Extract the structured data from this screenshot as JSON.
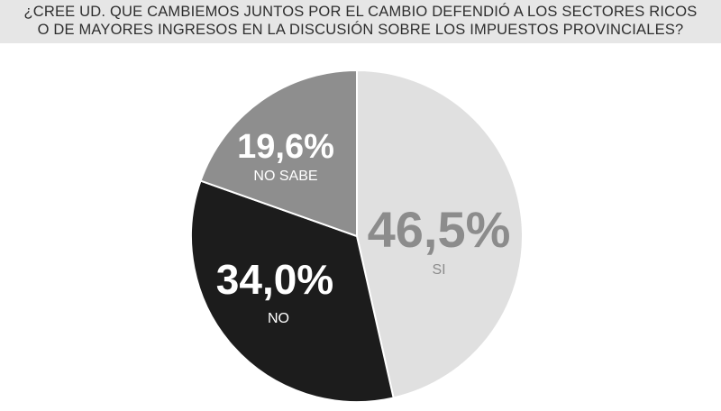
{
  "question": {
    "line1": "¿CREE UD. QUE CAMBIEMOS JUNTOS POR EL CAMBIO DEFENDIÓ A LOS SECTORES RICOS",
    "line2": "O DE MAYORES INGRESOS EN LA DISCUSIÓN SOBRE LOS IMPUESTOS PROVINCIALES?"
  },
  "chart_data": {
    "type": "pie",
    "title": "¿CREE UD. QUE CAMBIEMOS JUNTOS POR EL CAMBIO DEFENDIÓ A LOS SECTORES RICOS O DE MAYORES INGRESOS EN LA DISCUSIÓN SOBRE LOS IMPUESTOS PROVINCIALES?",
    "slices": [
      {
        "label": "SI",
        "value": 46.5,
        "value_label": "46,5%",
        "color": "#e0e0e0",
        "text_color": "#8c8c8c"
      },
      {
        "label": "NO",
        "value": 34.0,
        "value_label": "34,0%",
        "color": "#1c1c1c",
        "text_color": "#ffffff"
      },
      {
        "label": "NO SABE",
        "value": 19.6,
        "value_label": "19,6%",
        "color": "#8e8e8e",
        "text_color": "#ffffff"
      }
    ]
  }
}
